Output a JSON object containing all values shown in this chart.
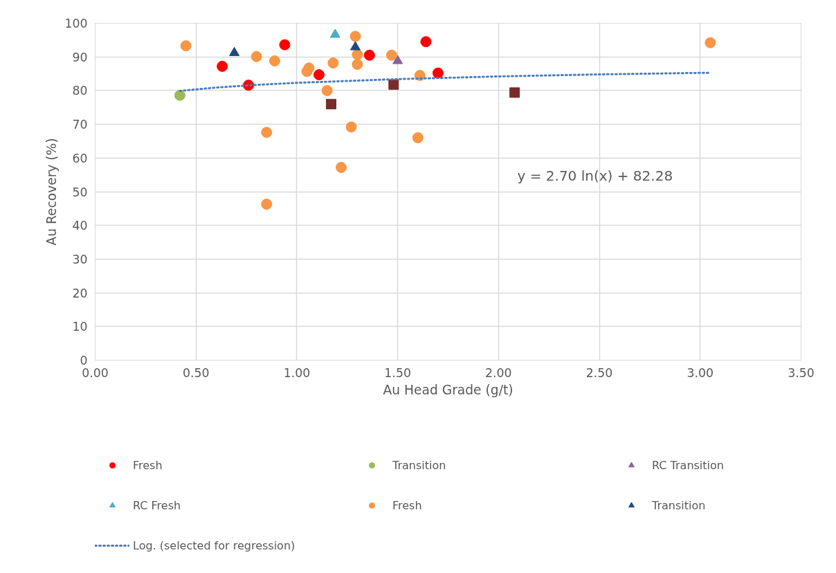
{
  "chart_data": {
    "type": "scatter",
    "xlabel": "Au Head Grade (g/t)",
    "ylabel": "Au Recovery (%)",
    "xlim": [
      0,
      3.5
    ],
    "xticks": [
      {
        "value": 0,
        "label": "0.00"
      },
      {
        "value": 0.5,
        "label": "0.50"
      },
      {
        "value": 1,
        "label": "1.00"
      },
      {
        "value": 1.5,
        "label": "1.50"
      },
      {
        "value": 2,
        "label": "2.00"
      },
      {
        "value": 2.5,
        "label": "2.50"
      },
      {
        "value": 3,
        "label": "3.00"
      },
      {
        "value": 3.5,
        "label": "3.50"
      }
    ],
    "ylim": [
      0,
      100
    ],
    "yticks": [
      0,
      10,
      20,
      30,
      40,
      50,
      60,
      70,
      80,
      90,
      100
    ],
    "grid": true,
    "legend": "bottom",
    "annotations": [
      "y = 2.70 ln(x) + 82.28"
    ],
    "series": [
      {
        "name": "Fresh",
        "color": "#ff0000",
        "marker": "circle",
        "x": [
          0.63,
          0.76,
          0.94,
          1.11,
          1.36,
          1.64,
          1.7
        ],
        "values": [
          87.2,
          81.6,
          93.6,
          84.7,
          90.5,
          94.5,
          85.2
        ]
      },
      {
        "name": "Transition",
        "color": "#9bbb59",
        "marker": "circle",
        "x": [
          0.42
        ],
        "values": [
          78.6
        ]
      },
      {
        "name": "RC Transition",
        "color": "#8064a2",
        "marker": "triangle",
        "x": [
          1.5
        ],
        "values": [
          88.8
        ]
      },
      {
        "name": "RC Fresh",
        "color": "#4bacc6",
        "marker": "triangle",
        "x": [
          1.19
        ],
        "values": [
          96.6
        ]
      },
      {
        "name": "Fresh",
        "color": "#f79646",
        "marker": "circle",
        "x": [
          0.45,
          0.8,
          0.85,
          0.85,
          0.89,
          1.05,
          1.06,
          1.15,
          1.18,
          1.22,
          1.27,
          1.29,
          1.3,
          1.3,
          1.47,
          1.6,
          1.61,
          3.05
        ],
        "values": [
          93.3,
          90.1,
          67.6,
          46.3,
          88.8,
          85.7,
          86.7,
          80.0,
          88.2,
          57.2,
          69.2,
          96.1,
          90.7,
          87.8,
          90.5,
          66.0,
          84.5,
          94.2
        ]
      },
      {
        "name": "Transition",
        "color": "#1f497d",
        "marker": "triangle",
        "x": [
          0.69,
          1.29
        ],
        "values": [
          91.2,
          92.9
        ]
      },
      {
        "color": "#772c2a",
        "marker": "square",
        "x": [
          1.17,
          1.48,
          2.08
        ],
        "values": [
          76.0,
          81.8,
          79.4
        ]
      },
      {
        "name": "Log. (selected for regression)",
        "type": "line",
        "line_style": "dotted",
        "marker": "none",
        "color": "#4a7ebb",
        "x": [
          0.42,
          0.6,
          0.8,
          1.0,
          1.5,
          2.0,
          2.5,
          3.05
        ],
        "values": [
          79.9,
          80.9,
          81.7,
          82.3,
          83.4,
          84.2,
          84.8,
          85.3
        ]
      }
    ]
  }
}
